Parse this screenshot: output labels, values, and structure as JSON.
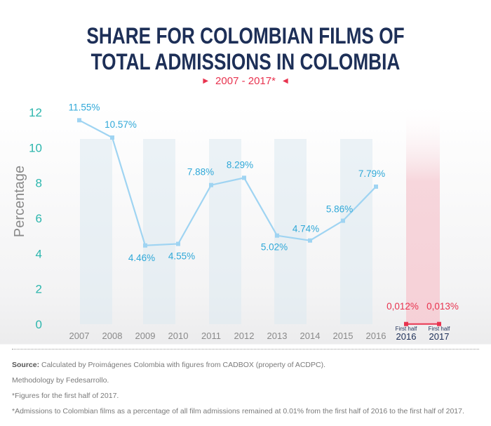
{
  "title_line1": "SHARE FOR COLOMBIAN FILMS OF",
  "title_line2": "TOTAL ADMISSIONS IN COLOMBIA",
  "subtitle": "2007 - 2017*",
  "colors": {
    "title": "#1d2f57",
    "accent": "#e8334f",
    "line": "#9fd4f2",
    "label": "#2fa8d8",
    "axis_ticks": "#2cb6ad",
    "band": "#dde9f1",
    "highlight_band": "#f6cdd4"
  },
  "chart_data": {
    "type": "line",
    "title": "SHARE FOR COLOMBIAN FILMS OF TOTAL ADMISSIONS IN COLOMBIA",
    "subtitle": "2007 - 2017*",
    "ylabel": "Percentage",
    "xlabel": "",
    "ylim": [
      0,
      12
    ],
    "yticks": [
      0,
      2,
      4,
      6,
      8,
      10,
      12
    ],
    "grid": false,
    "categories": [
      "2007",
      "2008",
      "2009",
      "2010",
      "2011",
      "2012",
      "2013",
      "2014",
      "2015",
      "2016"
    ],
    "series": [
      {
        "values": [
          11.55,
          10.57,
          4.46,
          4.55,
          7.88,
          8.29,
          5.02,
          4.74,
          5.86,
          7.79
        ],
        "labels": [
          "11.55%",
          "10.57%",
          "4.46%",
          "4.55%",
          "7.88%",
          "8.29%",
          "5.02%",
          "4.74%",
          "5.86%",
          "7.79%"
        ]
      }
    ],
    "first_half": {
      "categories": [
        {
          "prefix": "First half",
          "year": "2016"
        },
        {
          "prefix": "First half",
          "year": "2017"
        }
      ],
      "values": [
        0.012,
        0.013
      ],
      "labels": [
        "0,012%",
        "0,013%"
      ]
    }
  },
  "footer": {
    "source_label": "Source:",
    "source_text": " Calculated by Proimágenes Colombia with figures from CADBOX (property of ACDPC).",
    "methodology": "Methodology by Fedesarrollo.",
    "note1": "*Figures for the first half of 2017.",
    "note2": "*Admissions to Colombian films as a percentage of all film admissions remained at 0.01% from the first half of 2016 to the first half of 2017."
  }
}
